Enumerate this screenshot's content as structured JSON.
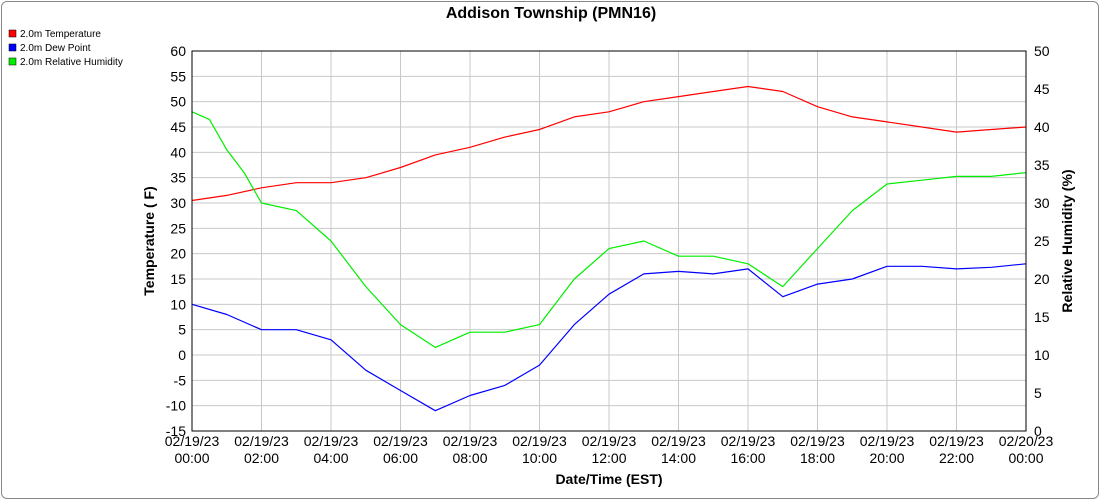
{
  "chart_data": {
    "type": "line",
    "title": "Addison Township (PMN16)",
    "xlabel": "Date/Time (EST)",
    "ylabel_left": "Temperature ( F)",
    "ylabel_right": "Relative Humidity (%)",
    "ylim_left": [
      -15,
      60
    ],
    "ylim_right": [
      0,
      50
    ],
    "yticks_left": [
      "-15",
      "-10",
      "-5",
      "0",
      "5",
      "10",
      "15",
      "20",
      "25",
      "30",
      "35",
      "40",
      "45",
      "50",
      "55",
      "60"
    ],
    "yticks_right": [
      "0",
      "5",
      "10",
      "15",
      "20",
      "25",
      "30",
      "35",
      "40",
      "45",
      "50"
    ],
    "xticks": [
      {
        "date": "02/19/23",
        "time": "00:00"
      },
      {
        "date": "02/19/23",
        "time": "02:00"
      },
      {
        "date": "02/19/23",
        "time": "04:00"
      },
      {
        "date": "02/19/23",
        "time": "06:00"
      },
      {
        "date": "02/19/23",
        "time": "08:00"
      },
      {
        "date": "02/19/23",
        "time": "10:00"
      },
      {
        "date": "02/19/23",
        "time": "12:00"
      },
      {
        "date": "02/19/23",
        "time": "14:00"
      },
      {
        "date": "02/19/23",
        "time": "16:00"
      },
      {
        "date": "02/19/23",
        "time": "18:00"
      },
      {
        "date": "02/19/23",
        "time": "20:00"
      },
      {
        "date": "02/19/23",
        "time": "22:00"
      },
      {
        "date": "02/20/23",
        "time": "00:00"
      }
    ],
    "grid": true,
    "legend_position": "top-left",
    "series": [
      {
        "name": "2.0m Temperature",
        "color": "#ff0000",
        "axis": "left",
        "x": [
          "02/19/23 00:00",
          "02/19/23 01:00",
          "02/19/23 02:00",
          "02/19/23 03:00",
          "02/19/23 04:00",
          "02/19/23 05:00",
          "02/19/23 06:00",
          "02/19/23 07:00",
          "02/19/23 08:00",
          "02/19/23 09:00",
          "02/19/23 10:00",
          "02/19/23 11:00",
          "02/19/23 12:00",
          "02/19/23 13:00",
          "02/19/23 14:00",
          "02/19/23 15:00",
          "02/19/23 16:00",
          "02/19/23 17:00",
          "02/19/23 18:00",
          "02/19/23 19:00",
          "02/19/23 20:00",
          "02/19/23 21:00",
          "02/19/23 22:00",
          "02/19/23 23:00",
          "02/20/23 00:00"
        ],
        "values": [
          30.5,
          31.5,
          33,
          34,
          34,
          35,
          37,
          39.5,
          41,
          43,
          44.5,
          47,
          48,
          50,
          51,
          52,
          53,
          52,
          49,
          47,
          46,
          45,
          44,
          44.5,
          45
        ]
      },
      {
        "name": "2.0m Dew Point",
        "color": "#0000ff",
        "axis": "left",
        "x": [
          "02/19/23 00:00",
          "02/19/23 01:00",
          "02/19/23 02:00",
          "02/19/23 03:00",
          "02/19/23 04:00",
          "02/19/23 05:00",
          "02/19/23 06:00",
          "02/19/23 07:00",
          "02/19/23 08:00",
          "02/19/23 09:00",
          "02/19/23 10:00",
          "02/19/23 11:00",
          "02/19/23 12:00",
          "02/19/23 13:00",
          "02/19/23 14:00",
          "02/19/23 15:00",
          "02/19/23 16:00",
          "02/19/23 17:00",
          "02/19/23 18:00",
          "02/19/23 19:00",
          "02/19/23 20:00",
          "02/19/23 21:00",
          "02/19/23 22:00",
          "02/19/23 23:00",
          "02/20/23 00:00"
        ],
        "values": [
          10,
          8,
          5,
          5,
          3,
          -3,
          -7,
          -11,
          -8,
          -6,
          -2,
          6,
          12,
          16,
          16.5,
          16,
          17,
          11.5,
          14,
          15,
          17.5,
          17.5,
          17,
          17.3,
          18
        ]
      },
      {
        "name": "2.0m Relative Humidity",
        "color": "#00ee00",
        "axis": "right",
        "x": [
          "02/19/23 00:00",
          "02/19/23 00:30",
          "02/19/23 01:00",
          "02/19/23 01:30",
          "02/19/23 02:00",
          "02/19/23 03:00",
          "02/19/23 04:00",
          "02/19/23 05:00",
          "02/19/23 06:00",
          "02/19/23 07:00",
          "02/19/23 08:00",
          "02/19/23 09:00",
          "02/19/23 10:00",
          "02/19/23 11:00",
          "02/19/23 12:00",
          "02/19/23 13:00",
          "02/19/23 14:00",
          "02/19/23 15:00",
          "02/19/23 16:00",
          "02/19/23 17:00",
          "02/19/23 18:00",
          "02/19/23 19:00",
          "02/19/23 20:00",
          "02/19/23 21:00",
          "02/19/23 22:00",
          "02/19/23 23:00",
          "02/20/23 00:00"
        ],
        "values": [
          42,
          41,
          37,
          34,
          30,
          29,
          25,
          19,
          14,
          11,
          13,
          13,
          14,
          20,
          24,
          25,
          23,
          23,
          22,
          19,
          24,
          29,
          32.5,
          33,
          33.5,
          33.5,
          34
        ]
      }
    ]
  }
}
